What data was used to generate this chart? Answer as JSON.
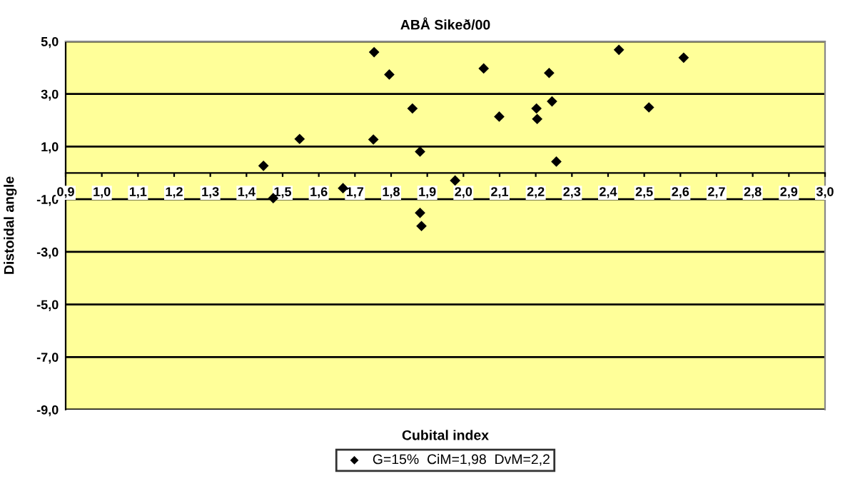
{
  "chart_data": {
    "type": "scatter",
    "title": "ABÅ Sikeð/00",
    "xlabel": "Cubital index",
    "ylabel": "Distoidal angle",
    "x": [
      1.447,
      1.547,
      1.753,
      1.795,
      1.751,
      1.859,
      1.88,
      1.977,
      2.056,
      2.099,
      2.202,
      2.204,
      2.237,
      2.245,
      2.257,
      2.43,
      2.513,
      2.609,
      1.474,
      1.667,
      1.88,
      1.884
    ],
    "series": [
      {
        "name": "G=15%  CiM=1,98  DvM=2,2",
        "color": "#000000",
        "values": [
          0.27,
          1.29,
          4.59,
          3.74,
          1.27,
          2.45,
          0.81,
          -0.29,
          3.97,
          2.14,
          2.45,
          2.05,
          3.8,
          2.72,
          0.43,
          4.68,
          2.49,
          4.38,
          -0.96,
          -0.58,
          -1.52,
          -2.02
        ]
      }
    ],
    "xlim": [
      0.9,
      3.0
    ],
    "xticks": [
      {
        "value": 0.9,
        "label": "0,9"
      },
      {
        "value": 1.0,
        "label": "1,0"
      },
      {
        "value": 1.1,
        "label": "1,1"
      },
      {
        "value": 1.2,
        "label": "1,2"
      },
      {
        "value": 1.3,
        "label": "1,3"
      },
      {
        "value": 1.4,
        "label": "1,4"
      },
      {
        "value": 1.5,
        "label": "1,5"
      },
      {
        "value": 1.6,
        "label": "1,6"
      },
      {
        "value": 1.7,
        "label": "1,7"
      },
      {
        "value": 1.8,
        "label": "1,8"
      },
      {
        "value": 1.9,
        "label": "1,9"
      },
      {
        "value": 2.0,
        "label": "2,0"
      },
      {
        "value": 2.1,
        "label": "2,1"
      },
      {
        "value": 2.2,
        "label": "2,2"
      },
      {
        "value": 2.3,
        "label": "2,3"
      },
      {
        "value": 2.4,
        "label": "2,4"
      },
      {
        "value": 2.5,
        "label": "2,5"
      },
      {
        "value": 2.6,
        "label": "2,6"
      },
      {
        "value": 2.7,
        "label": "2,7"
      },
      {
        "value": 2.8,
        "label": "2,8"
      },
      {
        "value": 2.9,
        "label": "2,9"
      },
      {
        "value": 3.0,
        "label": "3,0"
      }
    ],
    "ylim": [
      -9,
      5
    ],
    "yticks": [
      {
        "value": -9,
        "label": "-9,0"
      },
      {
        "value": -7,
        "label": "-7,0"
      },
      {
        "value": -5,
        "label": "-5,0"
      },
      {
        "value": -3,
        "label": "-3,0"
      },
      {
        "value": -1,
        "label": "-1,0"
      },
      {
        "value": 1,
        "label": "1,0"
      },
      {
        "value": 3,
        "label": "3,0"
      },
      {
        "value": 5,
        "label": "5,0"
      }
    ],
    "grid": "y",
    "legend": "bottom",
    "marker": "diamond"
  }
}
